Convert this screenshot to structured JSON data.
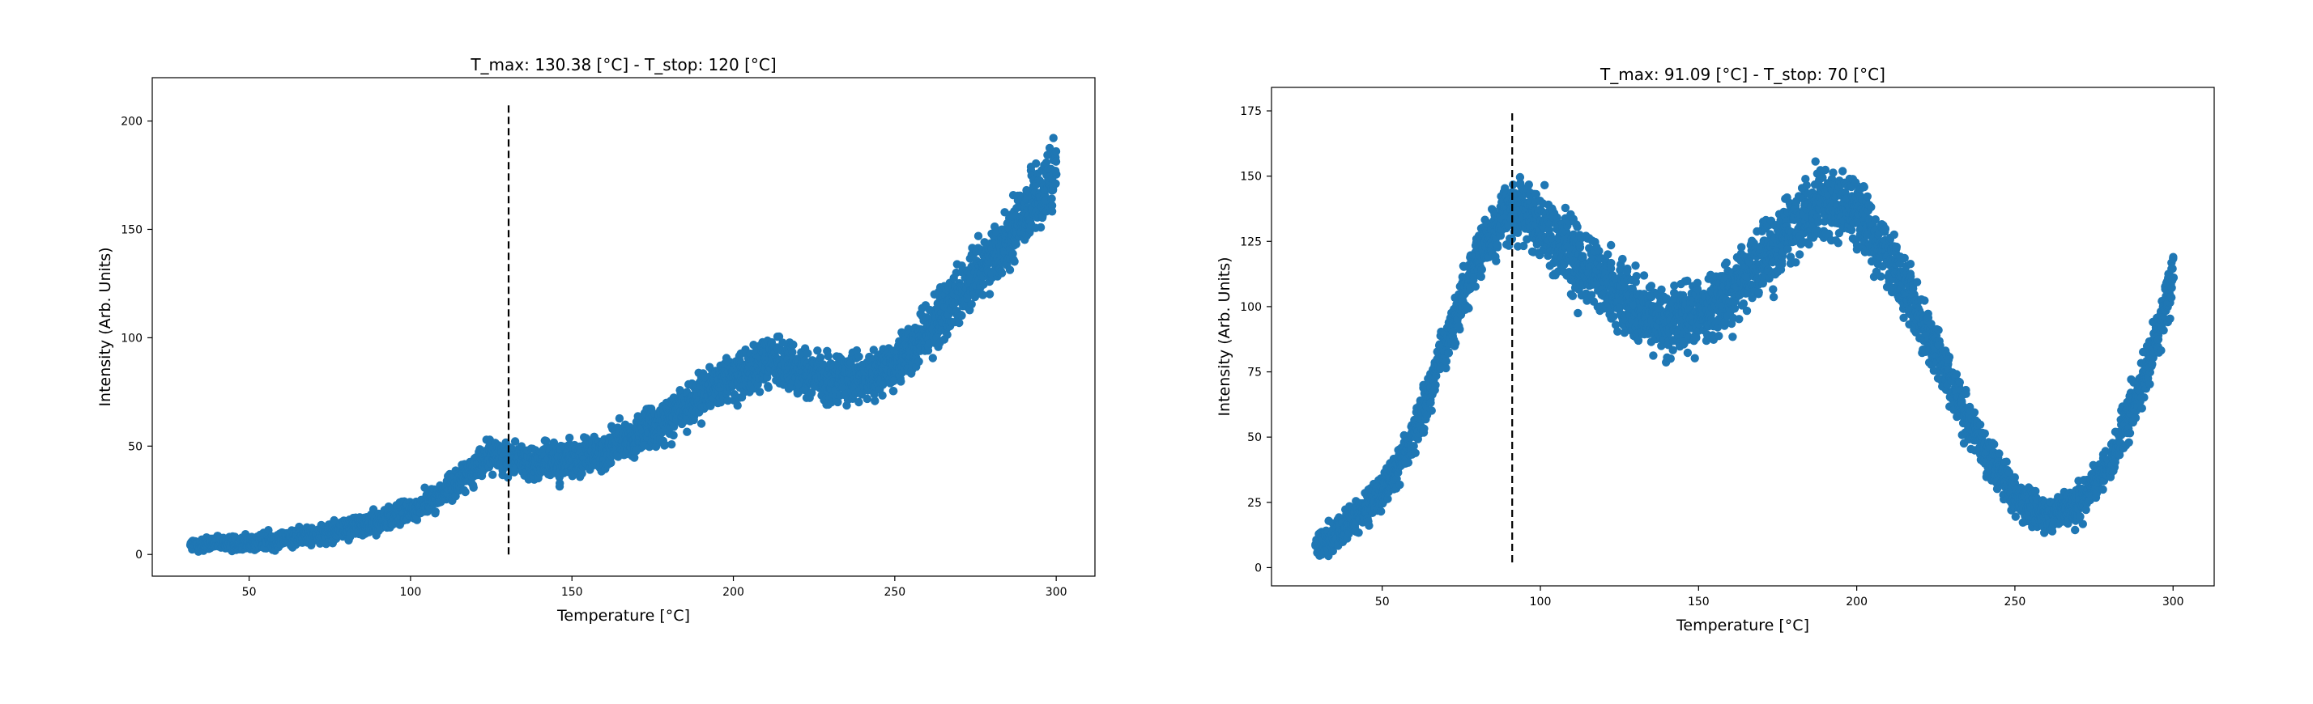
{
  "figure": {
    "background": "#ffffff",
    "marker_color": "#1f77b4",
    "vline_color": "#000000"
  },
  "chart_data": [
    {
      "type": "scatter",
      "title": "T_max: 130.38 [°C] - T_stop: 120 [°C]",
      "xlabel": "Temperature [°C]",
      "ylabel": "Intensity (Arb. Units)",
      "xlim": [
        20,
        312
      ],
      "ylim": [
        -10,
        220
      ],
      "xticks": [
        50,
        100,
        150,
        200,
        250,
        300
      ],
      "yticks": [
        0,
        50,
        100,
        150,
        200
      ],
      "grid": false,
      "legend": "none",
      "vline": {
        "x": 130.38,
        "ymin": 0,
        "ymax": 208,
        "style": "dashed"
      },
      "x_range": [
        32,
        300
      ],
      "n_points": 3600,
      "series": [
        {
          "marker": "circle",
          "color": "#1f77b4",
          "trend": [
            [
              32,
              4
            ],
            [
              40,
              5
            ],
            [
              50,
              5.5
            ],
            [
              60,
              7
            ],
            [
              70,
              9
            ],
            [
              80,
              12
            ],
            [
              90,
              15
            ],
            [
              100,
              20
            ],
            [
              110,
              28
            ],
            [
              120,
              40
            ],
            [
              125,
              46
            ],
            [
              130,
              45
            ],
            [
              140,
              42
            ],
            [
              150,
              43
            ],
            [
              160,
              48
            ],
            [
              170,
              55
            ],
            [
              180,
              63
            ],
            [
              190,
              73
            ],
            [
              200,
              82
            ],
            [
              210,
              90
            ],
            [
              220,
              86
            ],
            [
              230,
              80
            ],
            [
              240,
              80
            ],
            [
              250,
              88
            ],
            [
              260,
              103
            ],
            [
              270,
              120
            ],
            [
              280,
              136
            ],
            [
              290,
              155
            ],
            [
              300,
              178
            ]
          ],
          "spread": [
            [
              32,
              3
            ],
            [
              100,
              5
            ],
            [
              150,
              8
            ],
            [
              200,
              10
            ],
            [
              250,
              11
            ],
            [
              300,
              15
            ]
          ]
        }
      ]
    },
    {
      "type": "scatter",
      "title": "T_max: 91.09 [°C] - T_stop: 70 [°C]",
      "xlabel": "Temperature [°C]",
      "ylabel": "Intensity (Arb. Units)",
      "xlim": [
        15,
        313
      ],
      "ylim": [
        -7,
        184
      ],
      "xticks": [
        50,
        100,
        150,
        200,
        250,
        300
      ],
      "yticks": [
        0,
        25,
        50,
        75,
        100,
        125,
        150,
        175
      ],
      "grid": false,
      "legend": "none",
      "vline": {
        "x": 91.09,
        "ymin": 2,
        "ymax": 175,
        "style": "dashed"
      },
      "x_range": [
        29,
        300
      ],
      "n_points": 3600,
      "series": [
        {
          "marker": "circle",
          "color": "#1f77b4",
          "trend": [
            [
              29,
              8
            ],
            [
              40,
              17
            ],
            [
              50,
              28
            ],
            [
              60,
              50
            ],
            [
              70,
              85
            ],
            [
              80,
              120
            ],
            [
              90,
              136
            ],
            [
              95,
              138
            ],
            [
              100,
              132
            ],
            [
              110,
              120
            ],
            [
              120,
              108
            ],
            [
              130,
              100
            ],
            [
              140,
              95
            ],
            [
              150,
              96
            ],
            [
              160,
              105
            ],
            [
              170,
              118
            ],
            [
              180,
              130
            ],
            [
              190,
              140
            ],
            [
              200,
              137
            ],
            [
              210,
              120
            ],
            [
              220,
              95
            ],
            [
              230,
              70
            ],
            [
              240,
              45
            ],
            [
              250,
              28
            ],
            [
              260,
              20
            ],
            [
              270,
              24
            ],
            [
              280,
              40
            ],
            [
              290,
              70
            ],
            [
              300,
              112
            ]
          ],
          "spread": [
            [
              29,
              5
            ],
            [
              80,
              9
            ],
            [
              100,
              14
            ],
            [
              150,
              12
            ],
            [
              190,
              14
            ],
            [
              230,
              9
            ],
            [
              260,
              6
            ],
            [
              300,
              9
            ]
          ]
        }
      ]
    }
  ]
}
